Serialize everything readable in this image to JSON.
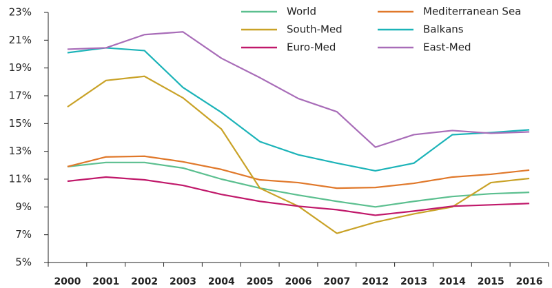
{
  "chart_data": {
    "type": "line",
    "categories": [
      "2000",
      "2001",
      "2002",
      "2003",
      "2004",
      "2005",
      "2006",
      "2007",
      "2012",
      "2013",
      "2014",
      "2015",
      "2016"
    ],
    "series": [
      {
        "name": "World",
        "color": "#5bbf8f",
        "values": [
          11.9,
          12.2,
          12.2,
          11.8,
          11.0,
          10.35,
          9.85,
          9.4,
          9.0,
          9.4,
          9.75,
          9.95,
          10.05
        ]
      },
      {
        "name": "Mediterranean Sea",
        "color": "#e0782a",
        "values": [
          11.9,
          12.6,
          12.65,
          12.25,
          11.7,
          10.95,
          10.75,
          10.35,
          10.4,
          10.7,
          11.15,
          11.35,
          11.65
        ]
      },
      {
        "name": "South-Med",
        "color": "#c9a227",
        "values": [
          16.2,
          18.1,
          18.4,
          16.85,
          14.6,
          10.35,
          9.05,
          7.1,
          7.9,
          8.5,
          9.0,
          10.75,
          11.05
        ]
      },
      {
        "name": "Balkans",
        "color": "#1bb3b8",
        "values": [
          20.1,
          20.45,
          20.25,
          17.6,
          15.8,
          13.7,
          12.75,
          12.15,
          11.6,
          12.15,
          14.2,
          14.35,
          14.55
        ]
      },
      {
        "name": "Euro-Med",
        "color": "#c0186a",
        "values": [
          10.85,
          11.15,
          10.95,
          10.55,
          9.9,
          9.4,
          9.05,
          8.8,
          8.4,
          8.7,
          9.05,
          9.15,
          9.25
        ]
      },
      {
        "name": "East-Med",
        "color": "#a86cb8",
        "values": [
          20.35,
          20.45,
          21.4,
          21.6,
          19.7,
          18.3,
          16.8,
          15.85,
          13.3,
          14.2,
          14.5,
          14.3,
          14.4
        ]
      }
    ],
    "ylim": [
      5,
      23
    ],
    "yticks": [
      {
        "value": 5,
        "label": "5%"
      },
      {
        "value": 7,
        "label": "7%"
      },
      {
        "value": 9,
        "label": "9%"
      },
      {
        "value": 11,
        "label": "11%"
      },
      {
        "value": 13,
        "label": "13%"
      },
      {
        "value": 15,
        "label": "15%"
      },
      {
        "value": 17,
        "label": "17%"
      },
      {
        "value": 19,
        "label": "19%"
      },
      {
        "value": 21,
        "label": "21%"
      },
      {
        "value": 23,
        "label": "23%"
      }
    ],
    "grid": false,
    "legend": "top-right"
  }
}
